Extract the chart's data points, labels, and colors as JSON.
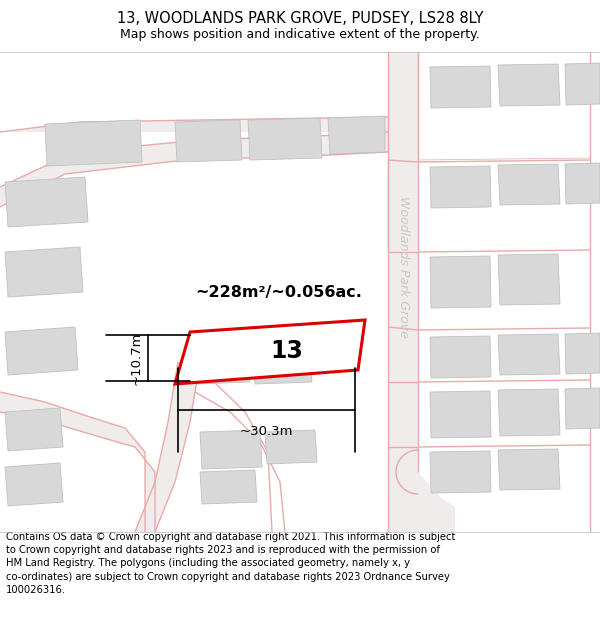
{
  "title": "13, WOODLANDS PARK GROVE, PUDSEY, LS28 8LY",
  "subtitle": "Map shows position and indicative extent of the property.",
  "footer": "Contains OS data © Crown copyright and database right 2021. This information is subject\nto Crown copyright and database rights 2023 and is reproduced with the permission of\nHM Land Registry. The polygons (including the associated geometry, namely x, y\nco-ordinates) are subject to Crown copyright and database rights 2023 Ordnance Survey\n100026316.",
  "area_label": "~228m²/~0.056ac.",
  "width_label": "~30.3m",
  "height_label": "~10.7m",
  "plot_number": "13",
  "bg_color": "#ffffff",
  "map_bg": "#ffffff",
  "road_fill": "#f0e8e8",
  "building_fill": "#d8d8d8",
  "building_edge": "#c0c0c0",
  "plot_outline_color": "#dd0000",
  "road_line_color": "#e8aaaa",
  "street_label": "Woodlands Park Grove",
  "title_fontsize": 10.5,
  "subtitle_fontsize": 9,
  "footer_fontsize": 7.2,
  "street_label_color": "#c8c8c8"
}
